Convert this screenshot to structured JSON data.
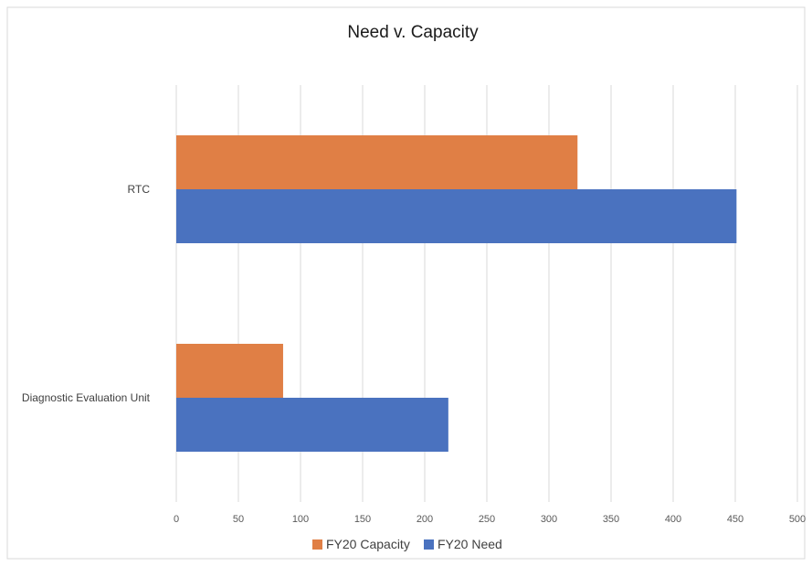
{
  "chart_data": {
    "type": "bar",
    "orientation": "horizontal",
    "title": "Need v. Capacity",
    "xlabel": "",
    "ylabel": "",
    "categories": [
      "RTC",
      "Diagnostic Evaluation Unit"
    ],
    "series": [
      {
        "name": "FY20 Capacity",
        "color": "#E07F45",
        "values": [
          323,
          86
        ]
      },
      {
        "name": "FY20 Need",
        "color": "#4A72BF",
        "values": [
          451,
          219
        ]
      }
    ],
    "xlim": [
      0,
      500
    ],
    "xticks": [
      0,
      50,
      100,
      150,
      200,
      250,
      300,
      350,
      400,
      450,
      500
    ],
    "grid": true,
    "legend_position": "bottom"
  }
}
